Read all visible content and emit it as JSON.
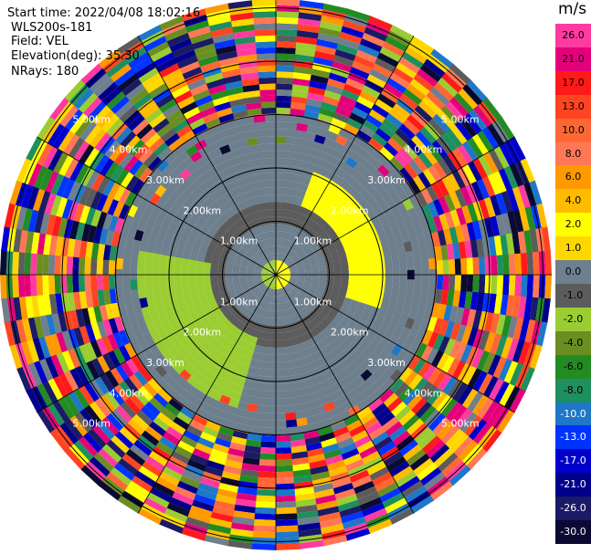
{
  "header": {
    "start_time": "Start time: 2022/04/08 18:02:16",
    "instrument": "WLS200s-181",
    "field": "Field: VEL",
    "elevation": "Elevation(deg): 35.30",
    "nrays": "NRays: 180"
  },
  "colorbar": {
    "unit": "m/s",
    "labels": [
      "26.0",
      "21.0",
      "17.0",
      "13.0",
      "10.0",
      "8.0",
      "6.0",
      "4.0",
      "2.0",
      "1.0",
      "0.0",
      "-1.0",
      "-2.0",
      "-4.0",
      "-6.0",
      "-8.0",
      "-10.0",
      "-13.0",
      "-17.0",
      "-21.0",
      "-26.0",
      "-30.0"
    ],
    "colors": [
      "#ff3aa0",
      "#e3007a",
      "#ff1a1a",
      "#ff4422",
      "#ff6633",
      "#ff7755",
      "#ff9900",
      "#ffbb00",
      "#ffff00",
      "#ffd700",
      "#6e7f8e",
      "#5c5c5c",
      "#9acd32",
      "#6b8e23",
      "#228b22",
      "#1e8f5e",
      "#1f77c8",
      "#0033ff",
      "#0000cc",
      "#00008b",
      "#1a1a66",
      "#0a0a33"
    ]
  },
  "range_rings": {
    "labels": [
      "1.00km",
      "2.00km",
      "3.00km",
      "4.00km",
      "5.00km"
    ]
  }
}
